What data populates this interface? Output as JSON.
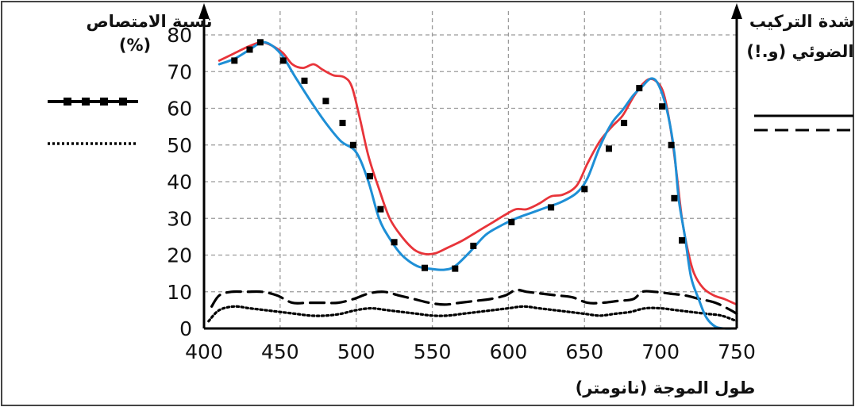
{
  "chart_data": {
    "type": "line",
    "left_axis_title": [
      "نسبة الامتصاص",
      "(%)"
    ],
    "right_axis_title": [
      "شدة التركيب",
      "الضوئي (و.!)"
    ],
    "xlabel": "طول الموجة (نانومتر)",
    "xlim": [
      400,
      750
    ],
    "ylim": [
      0,
      80
    ],
    "x_ticks": [
      "400",
      "450",
      "500",
      "550",
      "600",
      "650",
      "700",
      "750"
    ],
    "y_ticks": [
      "0",
      "10",
      "20",
      "30",
      "40",
      "50",
      "60",
      "70",
      "80"
    ],
    "grid": true,
    "colors": {
      "red": "#e8343a",
      "blue": "#1e8fd6",
      "black": "#000000"
    },
    "series": [
      {
        "key": "red",
        "style": "solid-red",
        "x": [
          410,
          420,
          430,
          438,
          445,
          452,
          458,
          465,
          472,
          478,
          485,
          492,
          497,
          502,
          508,
          515,
          522,
          530,
          538,
          545,
          552,
          560,
          570,
          580,
          590,
          598,
          605,
          612,
          620,
          628,
          636,
          645,
          652,
          660,
          668,
          675,
          682,
          688,
          693,
          698,
          702,
          706,
          710,
          714,
          718,
          722,
          728,
          735,
          742,
          750
        ],
        "y": [
          73,
          75,
          77,
          78,
          77,
          75,
          72,
          71,
          72,
          70.5,
          69,
          68.5,
          66,
          58,
          47,
          38,
          30,
          25,
          21.5,
          20.3,
          20.5,
          22,
          24,
          26.5,
          29,
          31,
          32.5,
          32.5,
          34,
          36,
          36.5,
          39,
          45,
          51,
          55,
          58,
          63,
          66.5,
          68,
          67,
          64,
          56,
          44,
          30,
          21,
          15,
          11,
          9,
          8,
          6.5
        ]
      },
      {
        "key": "blue",
        "style": "solid-blue",
        "x": [
          410,
          420,
          430,
          438,
          445,
          452,
          460,
          470,
          480,
          490,
          500,
          508,
          515,
          522,
          530,
          540,
          550,
          558,
          565,
          575,
          585,
          595,
          605,
          615,
          625,
          635,
          645,
          652,
          660,
          668,
          675,
          682,
          688,
          693,
          697,
          701,
          705,
          709,
          712,
          716,
          720,
          725,
          730,
          736,
          742,
          748
        ],
        "y": [
          72,
          73.5,
          76,
          78,
          77,
          74,
          68.5,
          62,
          56,
          51,
          48,
          40,
          30,
          24.5,
          20,
          17,
          16.2,
          16,
          17,
          21,
          25.5,
          28,
          30,
          31.5,
          33,
          34.5,
          37,
          41,
          49.5,
          56,
          59.5,
          63.5,
          66,
          68,
          67.5,
          64,
          58,
          48,
          35,
          25,
          14,
          8,
          3,
          0.5,
          0,
          0
        ]
      },
      {
        "key": "squares",
        "style": "black-square-markers",
        "legend": "left-top",
        "x": [
          420,
          430,
          437,
          452,
          466,
          480,
          491,
          498,
          509,
          516,
          525,
          545,
          565,
          577,
          602,
          628,
          650,
          666,
          676,
          686,
          701,
          707,
          709,
          714
        ],
        "y": [
          73,
          76,
          78,
          73,
          67.5,
          62,
          56,
          50,
          41.5,
          32.5,
          23.5,
          16.5,
          16.3,
          22.5,
          29,
          33,
          38,
          49,
          56,
          65.5,
          60.5,
          50,
          35.5,
          24
        ]
      },
      {
        "key": "dashed",
        "style": "black-dashed",
        "legend": "right-bottom",
        "x": [
          405,
          410,
          418,
          428,
          438,
          448,
          458,
          468,
          478,
          488,
          498,
          508,
          518,
          528,
          538,
          548,
          558,
          568,
          578,
          588,
          598,
          605,
          612,
          622,
          632,
          642,
          652,
          662,
          672,
          682,
          688,
          696,
          706,
          716,
          726,
          736,
          746,
          750
        ],
        "y": [
          6,
          9,
          10,
          10,
          10,
          9,
          7,
          7,
          7,
          7,
          8,
          9.5,
          10,
          9,
          8,
          7,
          6.5,
          7,
          7.5,
          8,
          9,
          10.5,
          10,
          9.5,
          9,
          8.5,
          7,
          7,
          7.5,
          8,
          10,
          10,
          9.5,
          9,
          8,
          7,
          5,
          4
        ]
      },
      {
        "key": "dotted",
        "style": "black-dotted",
        "legend": "left-bottom",
        "x": [
          403,
          410,
          420,
          430,
          440,
          450,
          460,
          470,
          480,
          490,
          500,
          510,
          520,
          530,
          540,
          550,
          560,
          570,
          580,
          590,
          600,
          610,
          620,
          630,
          640,
          650,
          660,
          670,
          680,
          690,
          700,
          710,
          720,
          730,
          740,
          750
        ],
        "y": [
          2,
          5,
          6,
          5.5,
          5,
          4.5,
          4,
          3.5,
          3.5,
          4,
          5,
          5.5,
          5,
          4.5,
          4,
          3.5,
          3.5,
          4,
          4.5,
          5,
          5.5,
          6,
          5.5,
          5,
          4.5,
          4,
          3.5,
          4,
          4.5,
          5.5,
          5.5,
          5,
          4.5,
          4,
          3.5,
          2
        ]
      }
    ]
  }
}
